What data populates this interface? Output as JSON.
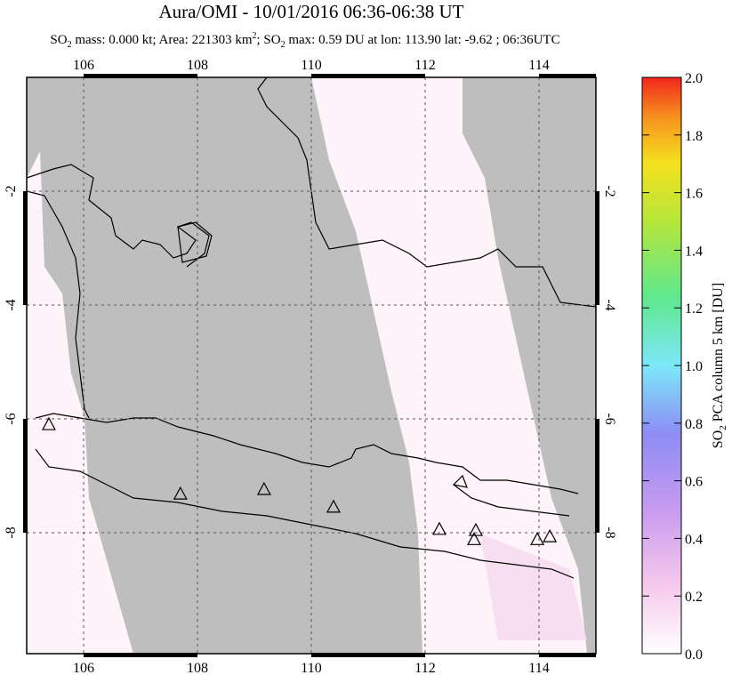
{
  "title": "Aura/OMI - 10/01/2016 06:36-06:38 UT",
  "subtitle": [
    "SO",
    "2",
    " mass: 0.000 kt; Area: 221303 km",
    "2",
    "; SO",
    "2",
    " max: 0.59 DU at lon: 113.90 lat: -9.62 ; 06:36UTC"
  ],
  "map": {
    "xlim": [
      105,
      115
    ],
    "ylim": [
      -10.125,
      0
    ],
    "xticks": [
      106,
      108,
      110,
      112,
      114
    ],
    "yticks": [
      -2,
      -4,
      -6,
      -8
    ],
    "volcanoes": {
      "lon": [
        105.39,
        107.7,
        109.17,
        110.39,
        112.25,
        112.89,
        112.86,
        113.97,
        114.19
      ],
      "lat": [
        -6.11,
        -7.33,
        -7.25,
        -7.56,
        -7.95,
        -7.97,
        -8.13,
        -8.13,
        -8.08
      ]
    }
  },
  "colorbar": {
    "lim": [
      0,
      2
    ],
    "ticks": [
      {
        "value": 0,
        "label": "0.0"
      },
      {
        "value": 0.2,
        "label": "0.2"
      },
      {
        "value": 0.4,
        "label": "0.4"
      },
      {
        "value": 0.6,
        "label": "0.6"
      },
      {
        "value": 0.8,
        "label": "0.8"
      },
      {
        "value": 1,
        "label": "1.0"
      },
      {
        "value": 1.2,
        "label": "1.2"
      },
      {
        "value": 1.4,
        "label": "1.4"
      },
      {
        "value": 1.6,
        "label": "1.6"
      },
      {
        "value": 1.8,
        "label": "1.8"
      },
      {
        "value": 2,
        "label": "2.0"
      }
    ],
    "label": [
      "SO",
      "2",
      " PCA column 5 km [DU]"
    ]
  }
}
